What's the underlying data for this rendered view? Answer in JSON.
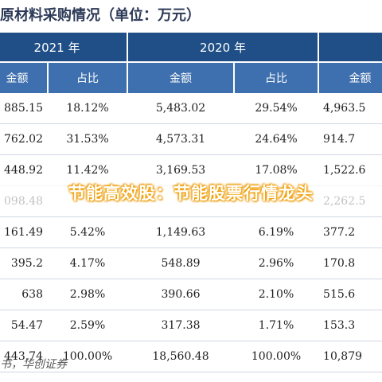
{
  "title": "原材料采购情况（单位：万元）",
  "header": {
    "years": [
      "2021 年",
      "2020 年"
    ],
    "cols": [
      "金额",
      "占比",
      "金额",
      "占比",
      "金额"
    ]
  },
  "rows": [
    [
      "885.15",
      "18.12%",
      "5,483.02",
      "29.54%",
      "4,963.5"
    ],
    [
      "762.02",
      "31.53%",
      "4,573.31",
      "24.64%",
      "914.7"
    ],
    [
      "448.92",
      "11.42%",
      "3,169.53",
      "17.08%",
      "1,522.6"
    ],
    [
      "098.48",
      "",
      "",
      "",
      "2,262.5"
    ],
    [
      "161.49",
      "5.42%",
      "1,149.63",
      "6.19%",
      "377.2"
    ],
    [
      "395.2",
      "4.17%",
      "548.89",
      "2.96%",
      "170.8"
    ],
    [
      "638",
      "2.98%",
      "390.66",
      "2.10%",
      "515.6"
    ],
    [
      "54.47",
      "2.59%",
      "317.38",
      "1.71%",
      "153.3"
    ],
    [
      "443.74",
      "100.00%",
      "18,560.48",
      "100.00%",
      "10,879"
    ]
  ],
  "source": "书，华创证券",
  "banner": "节能高效股：节能股票行情龙头"
}
